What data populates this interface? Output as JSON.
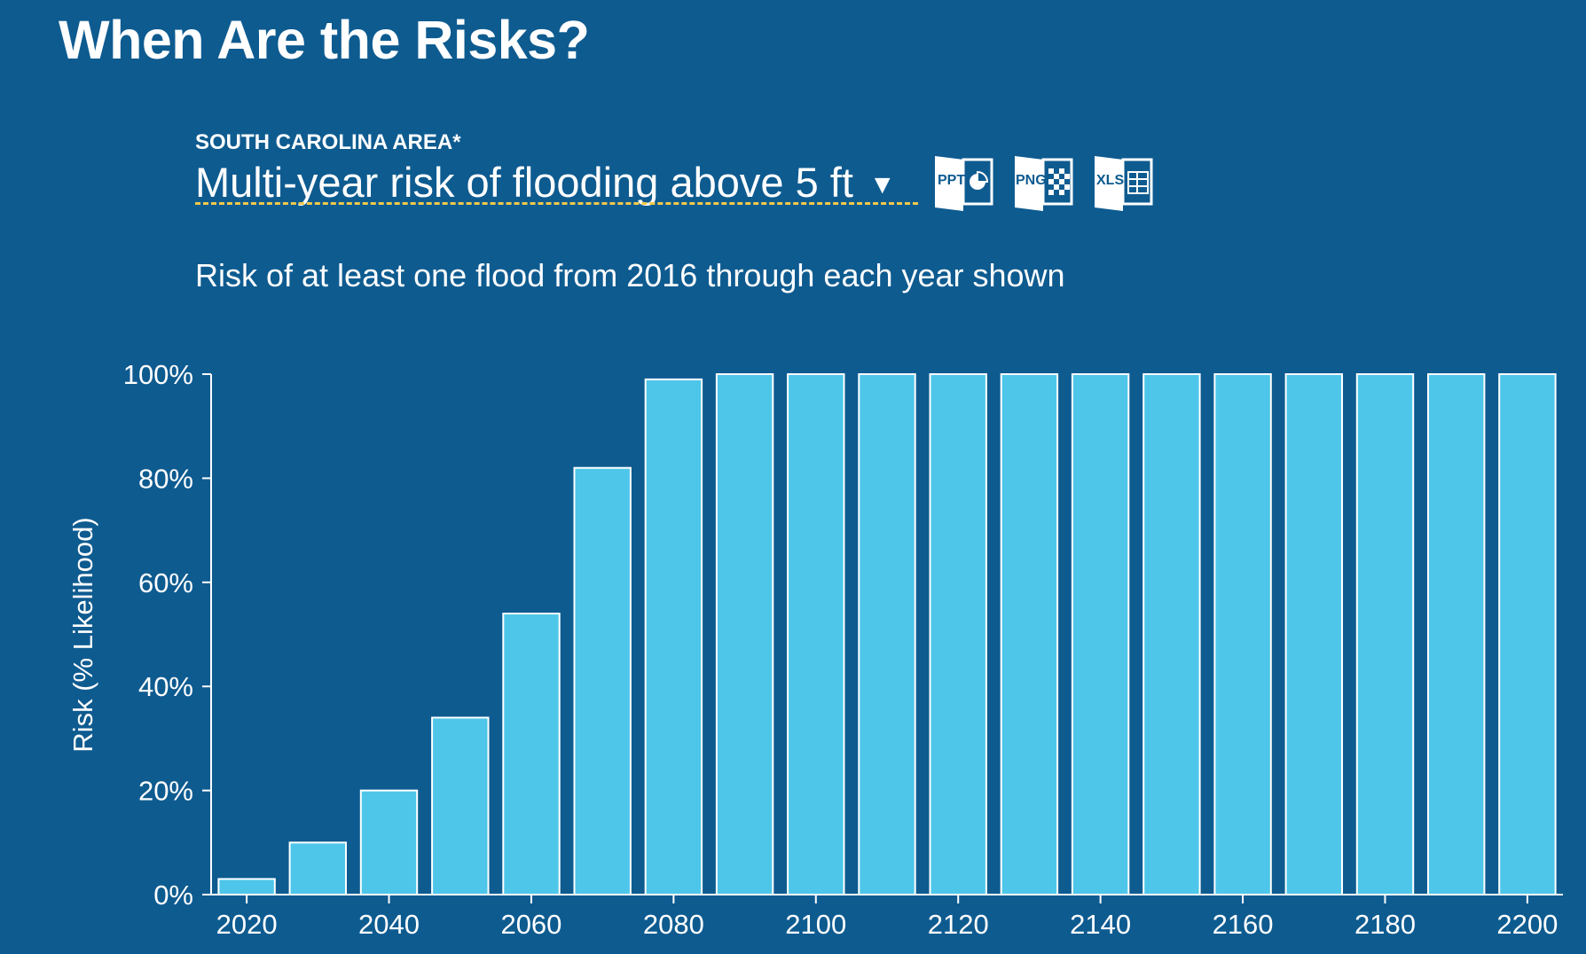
{
  "page": {
    "title": "When Are the Risks?",
    "area_label": "SOUTH CAROLINA AREA*",
    "selector_label": "Multi-year risk of flooding above 5 ft",
    "selector_caret": "▼",
    "export": [
      {
        "label": "PPT",
        "icon": "ppt-icon"
      },
      {
        "label": "PNG",
        "icon": "png-icon"
      },
      {
        "label": "XLS",
        "icon": "xls-icon"
      }
    ]
  },
  "colors": {
    "background": "#0e5b90",
    "bar_fill": "#4ec6ea",
    "bar_stroke": "#ffffff",
    "underline": "#f2c94c"
  },
  "chart_data": {
    "type": "bar",
    "subtitle": "Risk of at least one flood from 2016 through each year shown",
    "ylabel": "Risk (% Likelihood)",
    "xlabel": "",
    "x": [
      2020,
      2030,
      2040,
      2050,
      2060,
      2070,
      2080,
      2090,
      2100,
      2110,
      2120,
      2130,
      2140,
      2150,
      2160,
      2170,
      2180,
      2190,
      2200
    ],
    "values": [
      3,
      10,
      20,
      34,
      54,
      82,
      99,
      100,
      100,
      100,
      100,
      100,
      100,
      100,
      100,
      100,
      100,
      100,
      100
    ],
    "ylim": [
      0,
      100
    ],
    "xlim": [
      2015,
      2205
    ],
    "yticks": [
      "0%",
      "20%",
      "40%",
      "60%",
      "80%",
      "100%"
    ],
    "xticks": [
      "2020",
      "2040",
      "2060",
      "2080",
      "2100",
      "2120",
      "2140",
      "2160",
      "2180",
      "2200"
    ],
    "grid": false,
    "legend": "none"
  }
}
